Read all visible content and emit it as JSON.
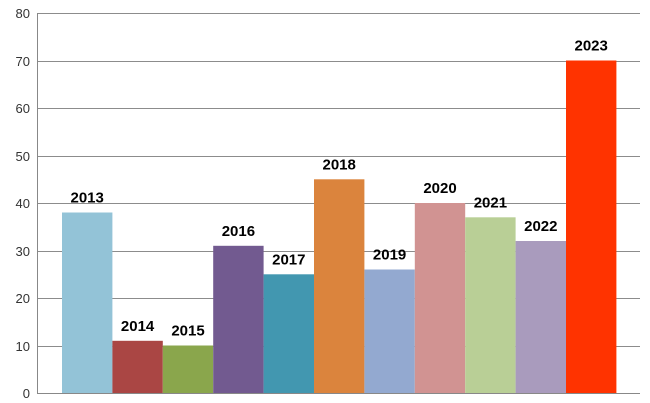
{
  "chart_data": {
    "type": "bar",
    "categories": [
      "2013",
      "2014",
      "2015",
      "2016",
      "2017",
      "2018",
      "2019",
      "2020",
      "2021",
      "2022",
      "2023"
    ],
    "values": [
      38,
      11,
      10,
      31,
      25,
      45,
      26,
      40,
      37,
      32,
      70
    ],
    "data_labels": [
      "2013",
      "2014",
      "2015",
      "2016",
      "2017",
      "2018",
      "2019",
      "2020",
      "2021",
      "2022",
      "2023"
    ],
    "colors": [
      "#93c3d7",
      "#aa4644",
      "#8aa64c",
      "#725a90",
      "#4297b0",
      "#db843d",
      "#93a9d0",
      "#d19392",
      "#b9cf96",
      "#a99bbd",
      "#ff3300"
    ],
    "title": "",
    "xlabel": "",
    "ylabel": "",
    "ylim": [
      0,
      80
    ],
    "yticks": [
      0,
      10,
      20,
      30,
      40,
      50,
      60,
      70,
      80
    ],
    "grid": true,
    "legend": "none"
  }
}
